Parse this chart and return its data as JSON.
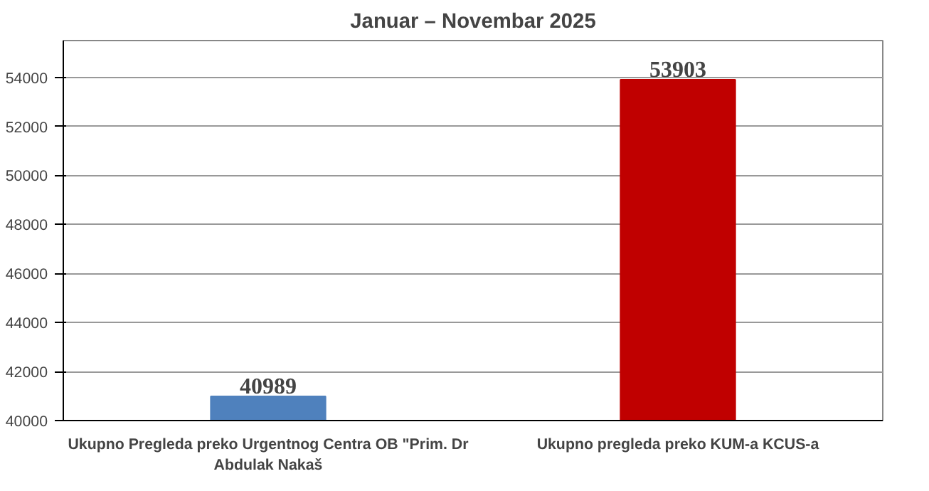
{
  "chart_data": {
    "type": "bar",
    "title": "Januar – Novembar 2025",
    "categories": [
      "Ukupno Pregleda preko Urgentnog Centra OB \"Prim. Dr Abdulak Nakaš",
      "Ukupno pregleda preko KUM-a KCUS-a"
    ],
    "values": [
      40989,
      53903
    ],
    "colors": [
      "#4f81bd",
      "#c00000"
    ],
    "ylim": [
      40000,
      55500
    ],
    "yticks": [
      40000,
      42000,
      44000,
      46000,
      48000,
      50000,
      52000,
      54000
    ],
    "grid": "y",
    "data_labels": true
  }
}
